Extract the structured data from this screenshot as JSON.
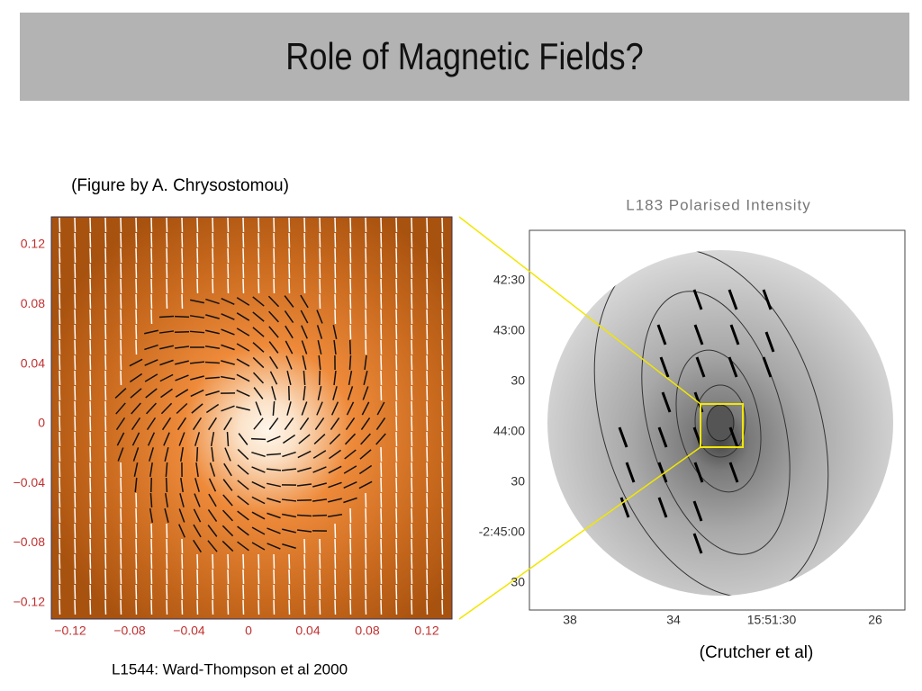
{
  "header": {
    "title": "Role of Magnetic Fields?"
  },
  "left_figure": {
    "caption": "(Figure by A. Chrysostomou)",
    "y_tick_labels": [
      "0.12",
      "0.08",
      "0.04",
      "0",
      "−0.04",
      "−0.08",
      "−0.12"
    ],
    "x_tick_labels": [
      "−0.12",
      "−0.08",
      "−0.04",
      "0",
      "0.04",
      "0.08",
      "0.12"
    ],
    "credit": "L1544: Ward-Thompson et al 2000"
  },
  "right_figure": {
    "title": "L183 Polarised Intensity",
    "y_tick_labels": [
      "42:30",
      "43:00",
      "30",
      "44:00",
      "30",
      "-2:45:00",
      "30"
    ],
    "x_tick_labels": [
      "38",
      "34",
      "15:51:30",
      "26"
    ],
    "credit": "(Crutcher et al)"
  }
}
